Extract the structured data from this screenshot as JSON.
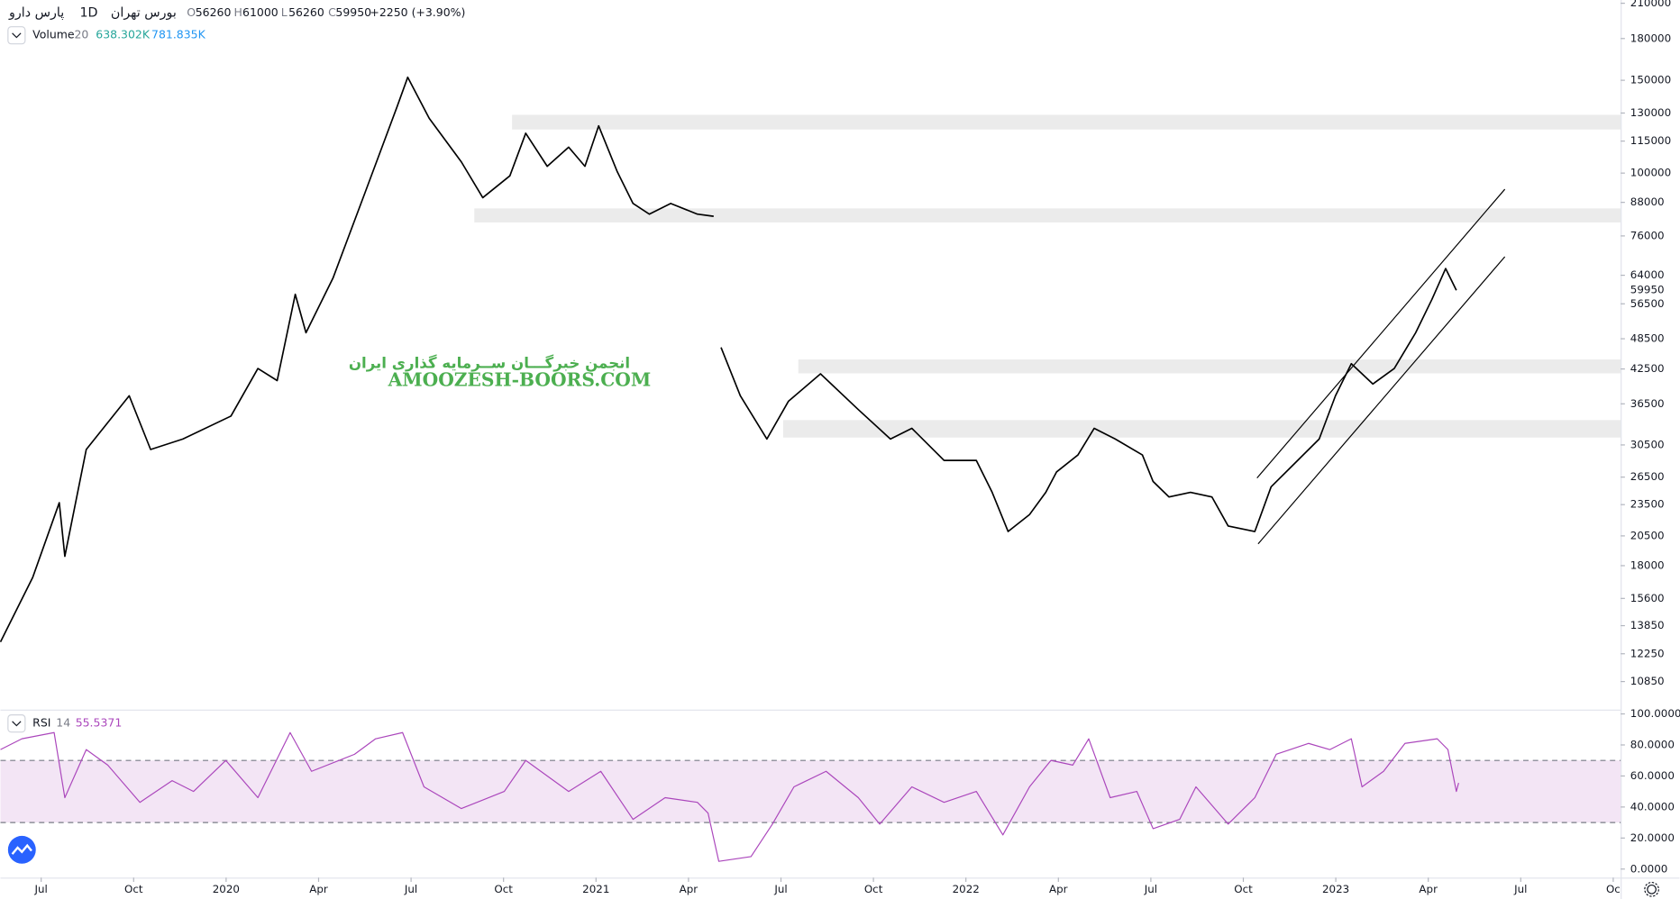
{
  "header": {
    "symbol": "پارس دارو",
    "interval": "1D",
    "exchange": "بورس تهران",
    "ohlc_letters": [
      "O",
      "H",
      "L",
      "C"
    ],
    "open": 56260,
    "high": 61000,
    "low": 56260,
    "close": 59950,
    "change": "+2250 (+3.90%)"
  },
  "volume_legend": {
    "name": "Volume",
    "length": 20,
    "value": "638.302K",
    "ma": "781.835K"
  },
  "watermark": {
    "persian": "انجمن خبرگـــان ســرمایه گذاری ایران",
    "latin": "AMOOZESH-BOORS.COM"
  },
  "chart_data": [
    {
      "type": "line",
      "scale": "log",
      "color": "#000000",
      "x": [
        2019.39,
        2019.477,
        2019.549,
        2019.564,
        2019.622,
        2019.738,
        2019.796,
        2019.883,
        2020.013,
        2020.086,
        2020.138,
        2020.187,
        2020.216,
        2020.289,
        2020.376,
        2020.462,
        2020.491,
        2020.549,
        2020.636,
        2020.694,
        2020.767,
        2020.81,
        2020.868,
        2020.926,
        2020.97,
        2021.007,
        2021.057,
        2021.1,
        2021.144,
        2021.202,
        2021.274,
        2021.318,
        2021.325,
        2021.338,
        2021.39,
        2021.462,
        2021.52,
        2021.607,
        2021.709,
        2021.796,
        2021.854,
        2021.941,
        2022.028,
        2022.071,
        2022.114,
        2022.172,
        2022.216,
        2022.245,
        2022.303,
        2022.347,
        2022.404,
        2022.477,
        2022.506,
        2022.549,
        2022.607,
        2022.665,
        2022.709,
        2022.781,
        2022.825,
        2022.897,
        2022.955,
        2022.999,
        2023.042,
        2023.1,
        2023.158,
        2023.216,
        2023.26,
        2023.297,
        2023.326
      ],
      "values": [
        12900,
        17100,
        23700,
        18750,
        29900,
        37800,
        29900,
        31300,
        34600,
        42600,
        40400,
        58900,
        49800,
        63200,
        92000,
        133500,
        152000,
        127000,
        105000,
        89800,
        98800,
        119000,
        103000,
        112000,
        103000,
        122900,
        100800,
        87600,
        83600,
        87600,
        83600,
        82800,
        null,
        46700,
        37800,
        31300,
        36900,
        41600,
        35600,
        31300,
        32800,
        28500,
        28500,
        24800,
        20900,
        22500,
        24800,
        27100,
        29200,
        32800,
        31300,
        29200,
        26000,
        24300,
        24800,
        24300,
        21400,
        20900,
        25400,
        28500,
        31300,
        37800,
        43500,
        39800,
        42600,
        49800,
        57600,
        65900,
        59950
      ],
      "xlim": [
        2019.39,
        2023.77
      ],
      "xticks": [
        {
          "value": 2019.5,
          "label": "Jul"
        },
        {
          "value": 2019.75,
          "label": "Oct"
        },
        2020,
        {
          "value": 2020.25,
          "label": "Apr"
        },
        {
          "value": 2020.5,
          "label": "Jul"
        },
        {
          "value": 2020.75,
          "label": "Oct"
        },
        2021,
        {
          "value": 2021.25,
          "label": "Apr"
        },
        {
          "value": 2021.5,
          "label": "Jul"
        },
        {
          "value": 2021.75,
          "label": "Oct"
        },
        2022,
        {
          "value": 2022.25,
          "label": "Apr"
        },
        {
          "value": 2022.5,
          "label": "Jul"
        },
        {
          "value": 2022.75,
          "label": "Oct"
        },
        2023,
        {
          "value": 2023.25,
          "label": "Apr"
        },
        {
          "value": 2023.5,
          "label": "Jul"
        },
        {
          "value": 2023.75,
          "label": "Oc"
        }
      ],
      "ylim": [
        9600,
        213000
      ],
      "yticks": [
        10850,
        12250,
        13850,
        15600,
        18000,
        20500,
        23500,
        26500,
        30500,
        36500,
        42500,
        48500,
        56500,
        64000,
        76000,
        88000,
        100000,
        115000,
        130000,
        150000,
        180000,
        210000
      ],
      "zone_color": "#ebebeb",
      "zones": [
        {
          "from": 2020.773,
          "low": 121000,
          "high": 129000
        },
        {
          "from": 2020.671,
          "low": 80600,
          "high": 85700
        },
        {
          "from": 2021.547,
          "low": 41700,
          "high": 44300
        },
        {
          "from": 2021.506,
          "low": 31500,
          "high": 34000
        }
      ],
      "channel": [
        {
          "x": [
            2022.787,
            2023.457
          ],
          "y": [
            26400,
            93200
          ]
        },
        {
          "x": [
            2022.79,
            2023.457
          ],
          "y": [
            19800,
            69400
          ]
        }
      ]
    },
    {
      "type": "line",
      "title": "RSI",
      "length": 14,
      "color": "#ab47bc",
      "x": [
        2019.39,
        2019.448,
        2019.535,
        2019.564,
        2019.622,
        2019.68,
        2019.767,
        2019.854,
        2019.912,
        2019.999,
        2020.086,
        2020.173,
        2020.231,
        2020.347,
        2020.404,
        2020.477,
        2020.535,
        2020.636,
        2020.752,
        2020.81,
        2020.926,
        2021.013,
        2021.1,
        2021.187,
        2021.274,
        2021.303,
        2021.332,
        2021.419,
        2021.477,
        2021.535,
        2021.622,
        2021.709,
        2021.767,
        2021.854,
        2021.941,
        2022.028,
        2022.1,
        2022.172,
        2022.23,
        2022.289,
        2022.332,
        2022.39,
        2022.462,
        2022.506,
        2022.578,
        2022.622,
        2022.709,
        2022.781,
        2022.839,
        2022.926,
        2022.984,
        2023.042,
        2023.071,
        2023.129,
        2023.187,
        2023.274,
        2023.303,
        2023.326,
        2023.332
      ],
      "values": [
        77,
        84,
        88,
        46,
        77,
        67,
        43,
        57,
        50,
        70,
        46,
        88,
        63,
        74,
        84,
        88,
        53,
        39,
        50,
        70,
        50,
        63,
        32,
        46,
        43,
        36,
        5,
        8,
        29,
        53,
        63,
        46,
        29,
        53,
        43,
        50,
        22,
        53,
        70,
        67,
        84,
        46,
        50,
        26,
        32,
        53,
        29,
        46,
        74,
        81,
        77,
        84,
        53,
        63,
        81,
        84,
        77,
        50,
        55.5371
      ],
      "ylim": [
        -5.5,
        102.8
      ],
      "yticks": [
        {
          "value": 0,
          "label": "0.0000"
        },
        {
          "value": 20,
          "label": "20.0000"
        },
        {
          "value": 40,
          "label": "40.0000"
        },
        {
          "value": 60,
          "label": "60.0000"
        },
        {
          "value": 80,
          "label": "80.0000"
        },
        {
          "value": 100,
          "label": "100.0000"
        }
      ],
      "bands": [
        30,
        70
      ],
      "band_color": "#f3e5f5"
    }
  ]
}
